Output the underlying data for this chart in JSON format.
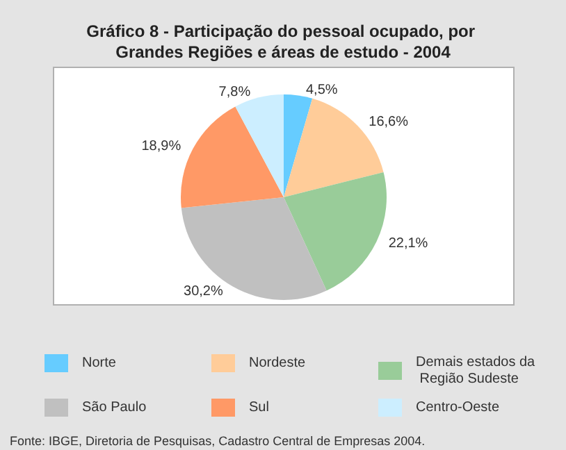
{
  "chart_data": {
    "type": "pie",
    "title": "Gráfico 8 - Participação do pessoal ocupado, por Grandes Regiões e áreas de estudo - 2004",
    "categories": [
      "Norte",
      "Nordeste",
      "Demais estados da Região Sudeste",
      "São Paulo",
      "Sul",
      "Centro-Oeste"
    ],
    "values": [
      4.5,
      16.6,
      22.1,
      30.2,
      18.9,
      7.8
    ],
    "colors": [
      "#66ccff",
      "#ffcc99",
      "#99cc99",
      "#c0c0c0",
      "#ff9966",
      "#cceeff"
    ],
    "value_labels": [
      "4,5%",
      "16,6%",
      "22,1%",
      "30,2%",
      "18,9%",
      "7,8%"
    ],
    "legend": "bottom",
    "annotations": [
      "Fonte: IBGE, Diretoria de Pesquisas, Cadastro Central de Empresas 2004."
    ]
  }
}
